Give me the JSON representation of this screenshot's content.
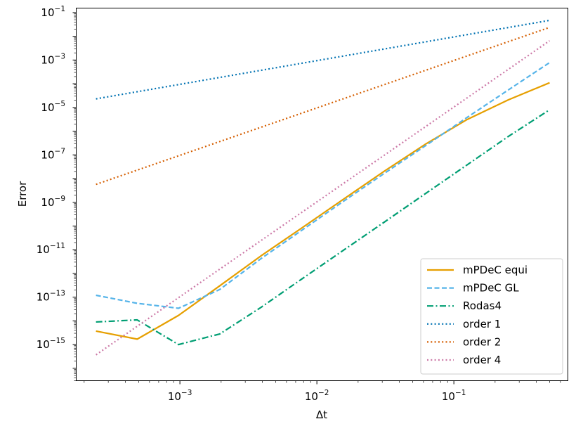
{
  "chart_data": {
    "type": "line",
    "title": "",
    "xlabel": "Δt",
    "ylabel": "Error",
    "xscale": "log",
    "yscale": "log",
    "xlim": [
      0.000175,
      0.68
    ],
    "ylim": [
      3e-17,
      0.1549
    ],
    "grid": false,
    "legend_position": "lower-right",
    "x_ticks": [
      {
        "value": 0.001,
        "base": "10",
        "exp": "−3"
      },
      {
        "value": 0.01,
        "base": "10",
        "exp": "−2"
      },
      {
        "value": 0.1,
        "base": "10",
        "exp": "−1"
      }
    ],
    "y_ticks": [
      {
        "value": 1e-15,
        "base": "10",
        "exp": "−15"
      },
      {
        "value": 1e-13,
        "base": "10",
        "exp": "−13"
      },
      {
        "value": 1e-11,
        "base": "10",
        "exp": "−11"
      },
      {
        "value": 1e-09,
        "base": "10",
        "exp": "−9"
      },
      {
        "value": 1e-07,
        "base": "10",
        "exp": "−7"
      },
      {
        "value": 1e-05,
        "base": "10",
        "exp": "−5"
      },
      {
        "value": 0.001,
        "base": "10",
        "exp": "−3"
      },
      {
        "value": 0.1,
        "base": "10",
        "exp": "−1"
      }
    ],
    "series": [
      {
        "name": "mPDeC equi",
        "color": "#E69F00",
        "dash": "solid",
        "x": [
          0.000244,
          0.000488,
          0.000977,
          0.001953,
          0.003906,
          0.007813,
          0.015625,
          0.03125,
          0.0625,
          0.125,
          0.25,
          0.5
        ],
        "y": [
          3.7e-15,
          1.7e-15,
          1.7e-14,
          3e-13,
          5.5e-12,
          8.5e-11,
          1.35e-09,
          2.1e-08,
          2.9e-07,
          3.1e-06,
          2.1e-05,
          0.00011
        ]
      },
      {
        "name": "mPDeC GL",
        "color": "#56B4E9",
        "dash": "dashed",
        "x": [
          0.000244,
          0.000488,
          0.000977,
          0.001953,
          0.003906,
          0.007813,
          0.015625,
          0.03125,
          0.0625,
          0.125,
          0.25,
          0.5
        ],
        "y": [
          1.2e-13,
          5.5e-14,
          3.4e-14,
          2.1e-13,
          4.2e-12,
          6.8e-11,
          1.1e-09,
          1.7e-08,
          2.5e-07,
          3.8e-06,
          5.5e-05,
          0.00078
        ]
      },
      {
        "name": "Rodas4",
        "color": "#009E73",
        "dash": "dashdot",
        "x": [
          0.000244,
          0.000488,
          0.000977,
          0.001953,
          0.003906,
          0.007813,
          0.015625,
          0.03125,
          0.0625,
          0.125,
          0.25,
          0.5
        ],
        "y": [
          9e-15,
          1.1e-14,
          1e-15,
          2.8e-15,
          3.7e-14,
          6e-13,
          9.5e-12,
          1.5e-10,
          2.4e-09,
          3.8e-08,
          6e-07,
          8e-06
        ]
      },
      {
        "name": "order 1",
        "color": "#0072B2",
        "dash": "dotted",
        "x": [
          0.000244,
          0.5
        ],
        "y": [
          2.3e-05,
          0.047
        ]
      },
      {
        "name": "order 2",
        "color": "#D55E00",
        "dash": "dotted",
        "x": [
          0.000244,
          0.5
        ],
        "y": [
          5.7e-09,
          0.0238
        ]
      },
      {
        "name": "order 4",
        "color": "#CC79A7",
        "dash": "dotted",
        "x": [
          0.000244,
          0.5
        ],
        "y": [
          3.7e-16,
          0.0065
        ]
      }
    ]
  }
}
